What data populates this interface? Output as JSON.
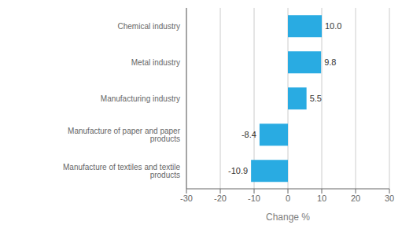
{
  "chart_data": {
    "type": "bar",
    "orientation": "horizontal",
    "categories": [
      "Manufacture of textiles and textile products",
      "Manufacture of paper and paper products",
      "Manufacturing industry",
      "Metal industry",
      "Chemical industry"
    ],
    "values": [
      -10.9,
      -8.4,
      5.5,
      9.8,
      10.0
    ],
    "value_labels": [
      "-10.9",
      "-8.4",
      "5.5",
      "9.8",
      "10.0"
    ],
    "data_labels": true,
    "color": "#29abe2",
    "xlabel": "Change %",
    "xlim": [
      -30,
      30
    ],
    "xticks": [
      -30,
      -20,
      -10,
      0,
      10,
      20,
      30
    ],
    "grid": true
  }
}
